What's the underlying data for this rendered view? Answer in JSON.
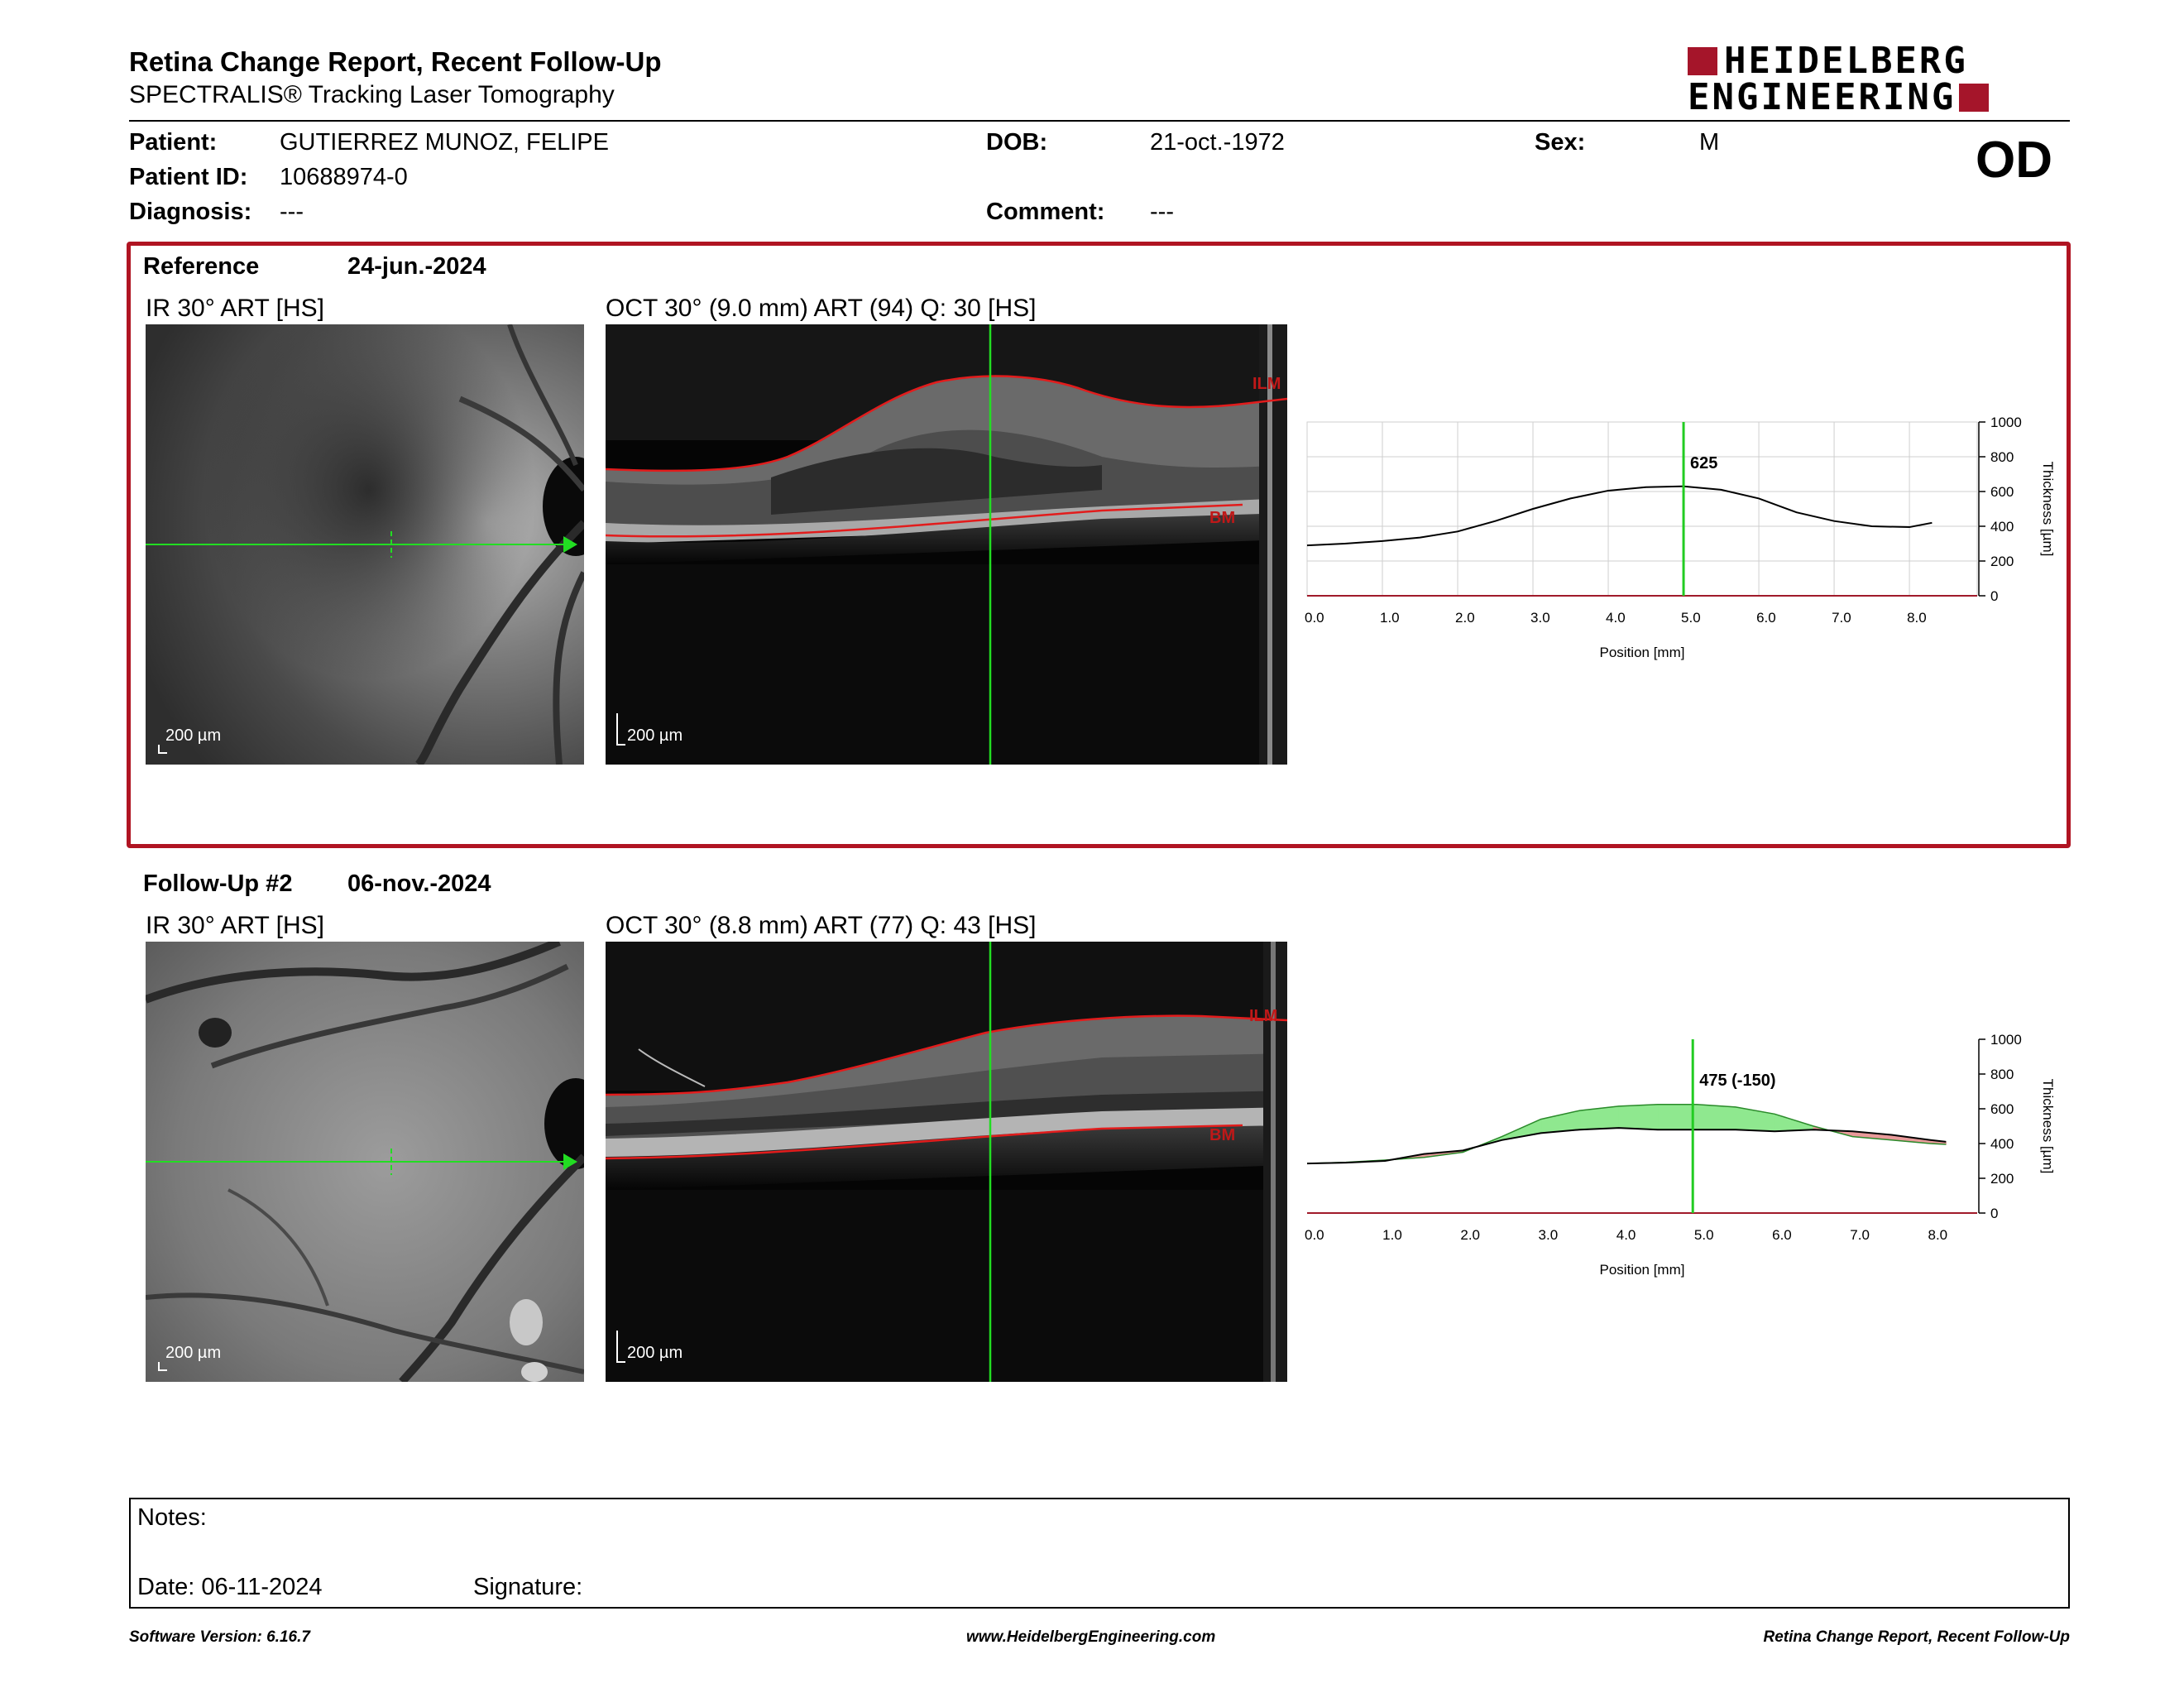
{
  "header": {
    "title": "Retina Change Report, Recent Follow-Up",
    "subtitle": "SPECTRALIS® Tracking Laser Tomography",
    "logo_line1": "HEIDELBERG",
    "logo_line2": "ENGINEERING",
    "brand_color": "#a5152a"
  },
  "patient": {
    "patient_label": "Patient:",
    "patient_value": "GUTIERREZ MUNOZ, FELIPE",
    "id_label": "Patient ID:",
    "id_value": "10688974-0",
    "diagnosis_label": "Diagnosis:",
    "diagnosis_value": "---",
    "dob_label": "DOB:",
    "dob_value": "21-oct.-1972",
    "comment_label": "Comment:",
    "comment_value": "---",
    "sex_label": "Sex:",
    "sex_value": "M",
    "eye": "OD"
  },
  "reference": {
    "label": "Reference",
    "date": "24-jun.-2024",
    "ir_caption": "IR 30° ART [HS]",
    "oct_caption": "OCT 30° (9.0 mm) ART (94) Q: 30 [HS]",
    "ir_scale": "200 µm",
    "oct_scale": "200 µm",
    "ilm_label": "ILM",
    "bm_label": "BM",
    "border_color": "#b01422"
  },
  "followup": {
    "label": "Follow-Up #2",
    "date": "06-nov.-2024",
    "ir_caption": "IR 30° ART [HS]",
    "oct_caption": "OCT 30° (8.8 mm) ART (77) Q: 43 [HS]",
    "ir_scale": "200 µm",
    "oct_scale": "200 µm",
    "ilm_label": "ILM",
    "bm_label": "BM"
  },
  "chart_data": [
    {
      "type": "line",
      "xlabel": "Position [mm]",
      "ylabel": "Thickness [µm]",
      "xlim": [
        0,
        8.9
      ],
      "ylim": [
        0,
        1000
      ],
      "x_ticks": [
        "0.0",
        "1.0",
        "2.0",
        "3.0",
        "4.0",
        "5.0",
        "6.0",
        "7.0",
        "8.0"
      ],
      "y_ticks": [
        "0",
        "200",
        "400",
        "600",
        "800",
        "1000"
      ],
      "cursor_x": 5.0,
      "cursor_label": "625",
      "grid": true,
      "cursor_color": "#22cc22",
      "series": [
        {
          "x": [
            0.0,
            0.5,
            1.0,
            1.5,
            2.0,
            2.5,
            3.0,
            3.5,
            4.0,
            4.5,
            5.0,
            5.5,
            6.0,
            6.5,
            7.0,
            7.5,
            8.0,
            8.3
          ],
          "values": [
            290,
            300,
            315,
            335,
            370,
            430,
            500,
            560,
            605,
            625,
            630,
            610,
            560,
            480,
            430,
            400,
            395,
            420
          ]
        }
      ]
    },
    {
      "type": "line",
      "xlabel": "Position [mm]",
      "ylabel": "Thickness [µm]",
      "xlim": [
        0,
        8.6
      ],
      "ylim": [
        0,
        1000
      ],
      "x_ticks": [
        "0.0",
        "1.0",
        "2.0",
        "3.0",
        "4.0",
        "5.0",
        "6.0",
        "7.0",
        "8.0"
      ],
      "y_ticks": [
        "0",
        "200",
        "400",
        "600",
        "800",
        "1000"
      ],
      "cursor_x": 4.95,
      "cursor_label": "475 (-150)",
      "grid": false,
      "cursor_color": "#22cc22",
      "increase_color": "#8fe88f",
      "decrease_color": "#e89a9a",
      "series": [
        {
          "x": [
            0.0,
            0.5,
            1.0,
            1.5,
            2.0,
            2.5,
            3.0,
            3.5,
            4.0,
            4.5,
            5.0,
            5.5,
            6.0,
            6.5,
            7.0,
            7.5,
            8.0,
            8.2
          ],
          "values": [
            285,
            290,
            300,
            340,
            360,
            420,
            460,
            480,
            490,
            480,
            480,
            480,
            470,
            480,
            470,
            450,
            420,
            410
          ]
        },
        {
          "x": [
            0.0,
            0.5,
            1.0,
            1.5,
            2.0,
            2.5,
            3.0,
            3.5,
            4.0,
            4.5,
            5.0,
            5.5,
            6.0,
            6.5,
            7.0,
            7.5,
            8.0,
            8.2
          ],
          "values": [
            285,
            292,
            305,
            320,
            350,
            440,
            540,
            590,
            615,
            625,
            625,
            610,
            570,
            500,
            440,
            420,
            400,
            395
          ]
        }
      ]
    }
  ],
  "notes": {
    "notes_label": "Notes:",
    "date_text": "Date: 06-11-2024",
    "signature_label": "Signature:"
  },
  "footer": {
    "software": "Software Version: 6.16.7",
    "website": "www.HeidelbergEngineering.com",
    "report_name": "Retina Change Report, Recent Follow-Up"
  }
}
